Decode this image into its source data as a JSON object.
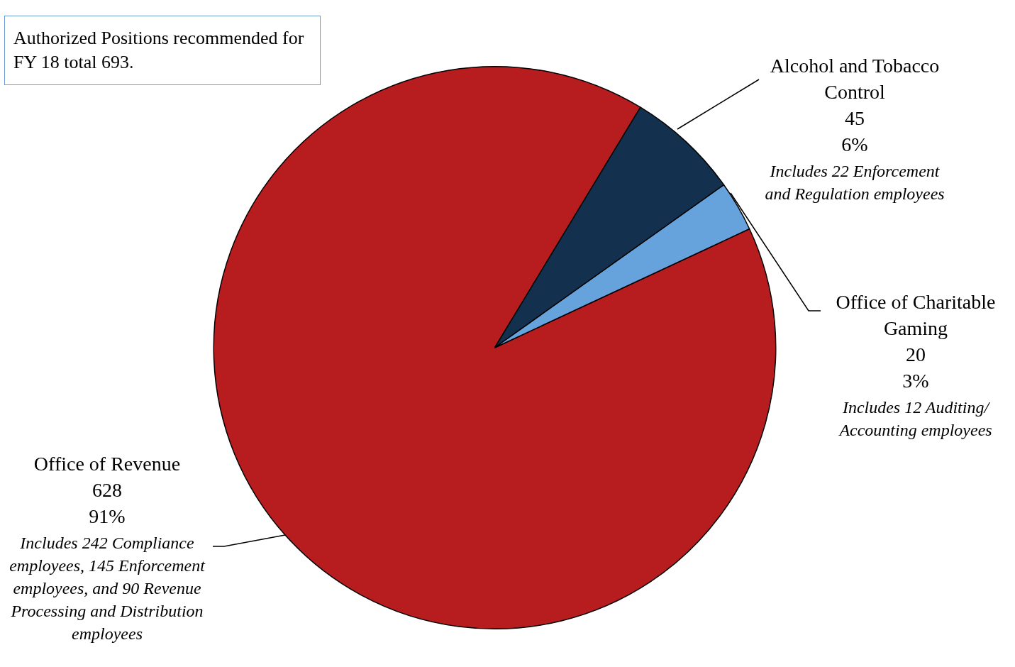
{
  "chart_data": {
    "type": "pie",
    "title": "Authorized Positions recommended for FY 18 total 693.",
    "categories": [
      "Office of Revenue",
      "Alcohol and Tobacco Control",
      "Office of Charitable Gaming"
    ],
    "values": [
      628,
      45,
      20
    ],
    "colors": [
      "#b71c1f",
      "#14304f",
      "#66a3dd"
    ],
    "value_labels": [
      "628\n91%",
      "45\n6%",
      "20\n3%"
    ],
    "annotations": [
      "Includes 242 Compliance employees, 145 Enforcement employees, and 90 Revenue Processing and Distribution employees",
      "Includes 22 Enforcement and Regulation employees",
      "Includes 12 Auditing/ Accounting employees"
    ],
    "legend": false
  }
}
